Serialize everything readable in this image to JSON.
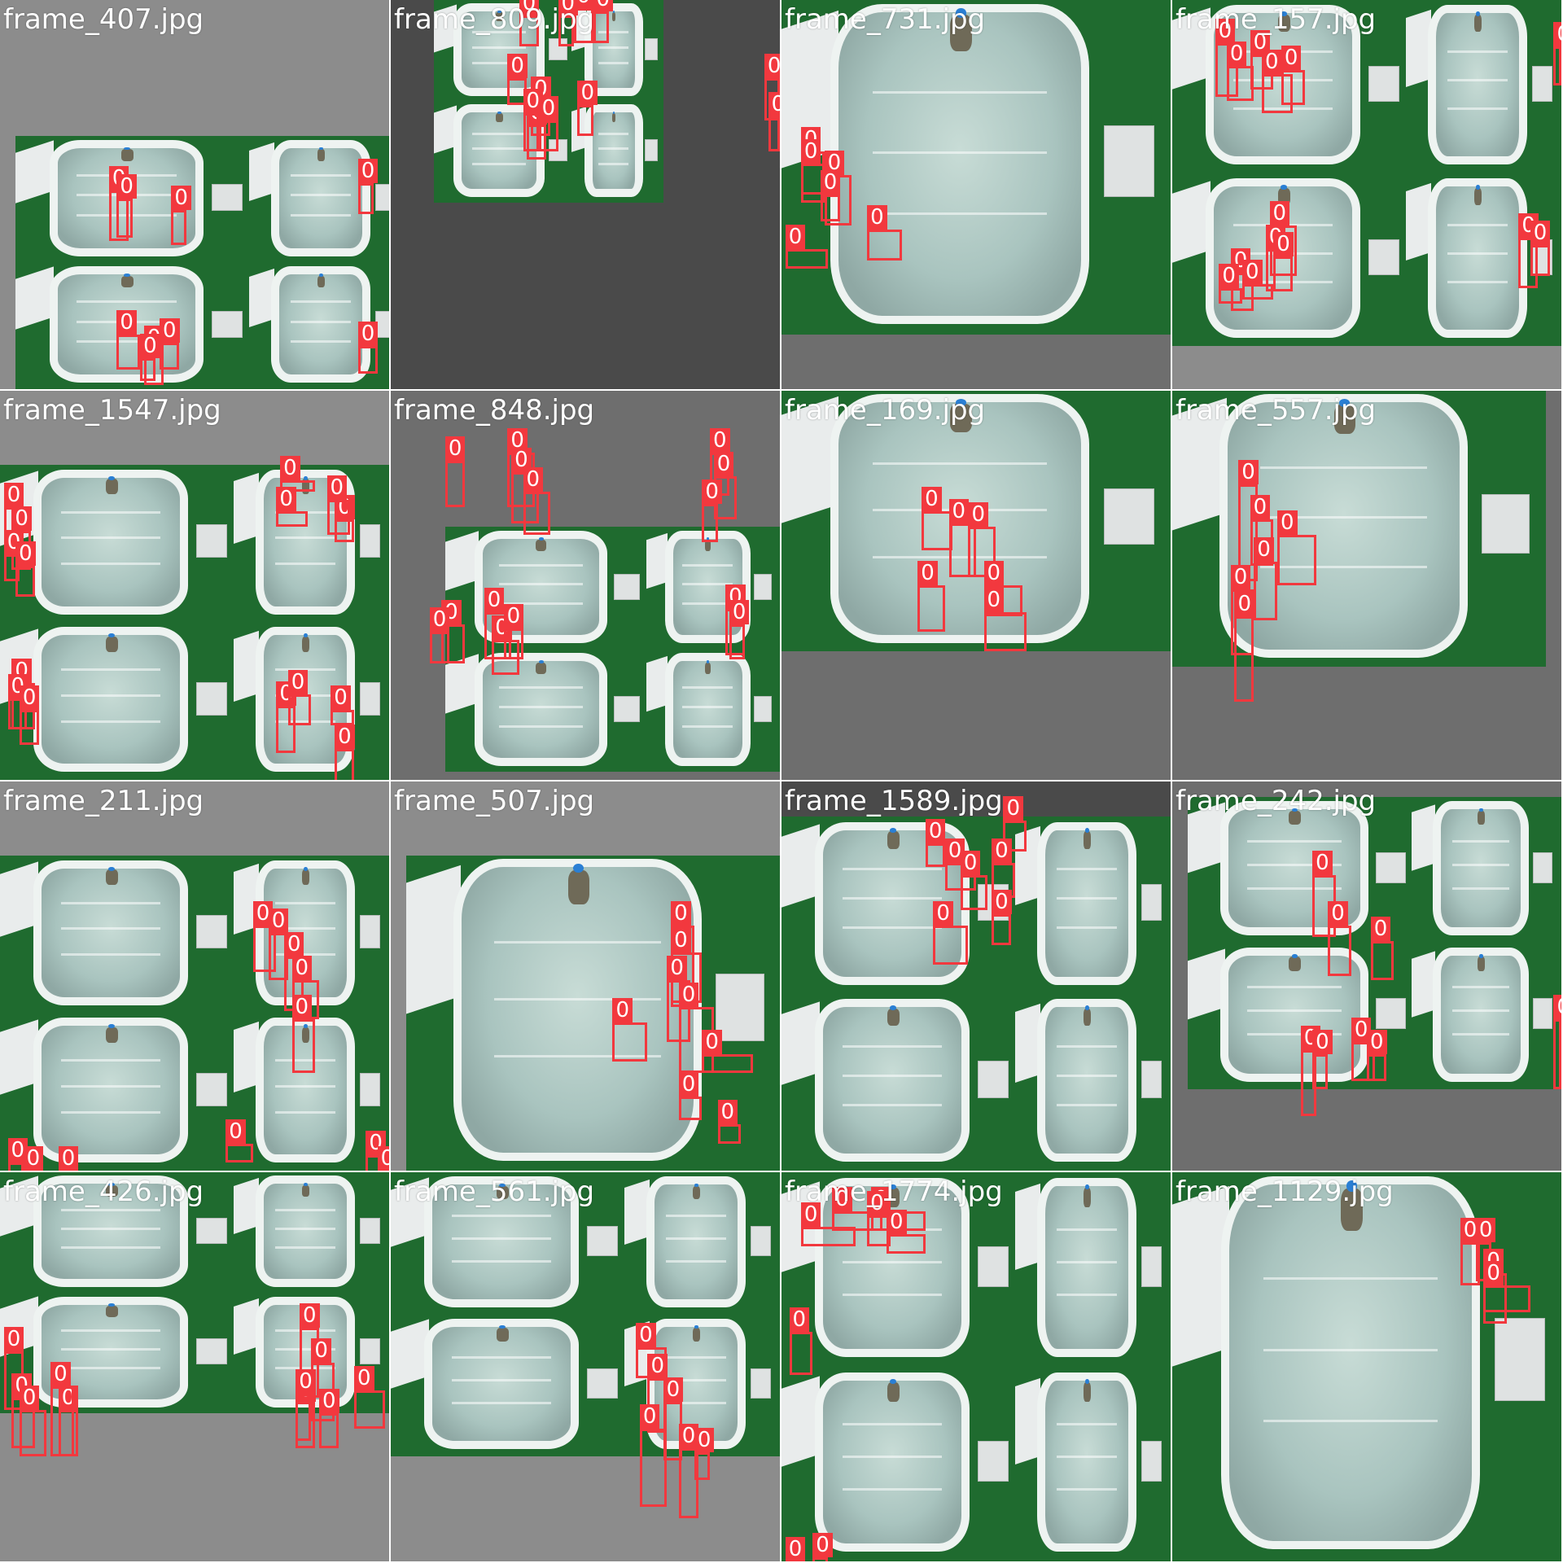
{
  "class_label": "0",
  "colors": {
    "box": "#f2383e",
    "water": "#b4cbc6",
    "grass": "#1f6b2f",
    "pad_light": "#8c8c8c",
    "pad_dark": "#4a4a4a"
  },
  "tiles": [
    {
      "filename": "frame_407.jpg",
      "pad": "#8c8c8c",
      "scene": "quad",
      "boxes": 9
    },
    {
      "filename": "frame_809.jpg",
      "pad": "#4a4a4a",
      "scene": "quad",
      "boxes": 12
    },
    {
      "filename": "frame_731.jpg",
      "pad": "#6e6e6e",
      "scene": "single",
      "boxes": 6
    },
    {
      "filename": "frame_157.jpg",
      "pad": "#8c8c8c",
      "scene": "quad",
      "boxes": 14
    },
    {
      "filename": "frame_1547.jpg",
      "pad": "#8c8c8c",
      "scene": "quad",
      "boxes": 15
    },
    {
      "filename": "frame_848.jpg",
      "pad": "#6e6e6e",
      "scene": "quad",
      "boxes": 14
    },
    {
      "filename": "frame_169.jpg",
      "pad": "#6e6e6e",
      "scene": "single",
      "boxes": 6
    },
    {
      "filename": "frame_557.jpg",
      "pad": "#6e6e6e",
      "scene": "single",
      "boxes": 6
    },
    {
      "filename": "frame_211.jpg",
      "pad": "#8c8c8c",
      "scene": "quad",
      "boxes": 11
    },
    {
      "filename": "frame_507.jpg",
      "pad": "#8c8c8c",
      "scene": "single",
      "boxes": 8
    },
    {
      "filename": "frame_1589.jpg",
      "pad": "#4a4a4a",
      "scene": "quad",
      "boxes": 7
    },
    {
      "filename": "frame_242.jpg",
      "pad": "#6e6e6e",
      "scene": "quad",
      "boxes": 8
    },
    {
      "filename": "frame_426.jpg",
      "pad": "#8c8c8c",
      "scene": "quad",
      "boxes": 11
    },
    {
      "filename": "frame_561.jpg",
      "pad": "#8c8c8c",
      "scene": "quad",
      "boxes": 6
    },
    {
      "filename": "frame_1774.jpg",
      "pad": "#4a4a4a",
      "scene": "quad",
      "boxes": 8
    },
    {
      "filename": "frame_1129.jpg",
      "pad": "#4a4a4a",
      "scene": "single",
      "boxes": 4
    }
  ]
}
